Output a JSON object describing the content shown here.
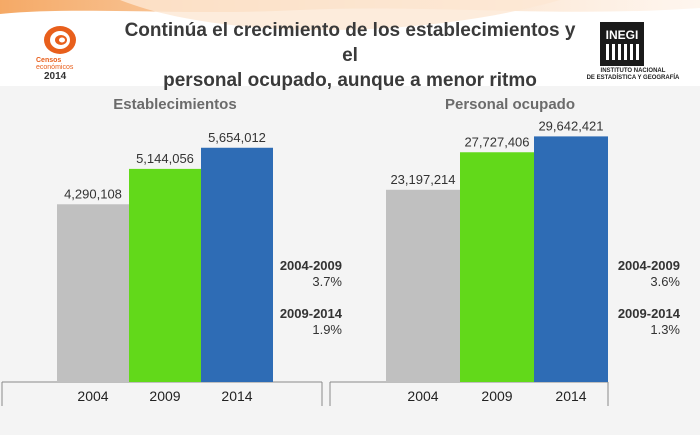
{
  "header": {
    "title_line1": "Continúa el crecimiento de los establecimientos y el",
    "title_line2": "personal ocupado, aunque a menor ritmo"
  },
  "logo_censos": {
    "line1": "Censos",
    "line2": "económicos",
    "line3": "2014"
  },
  "logo_inegi": {
    "mark": "INEGI",
    "line1": "INSTITUTO NACIONAL",
    "line2": "DE ESTADÍSTICA Y GEOGRAFÍA"
  },
  "colors": {
    "bar_2004": "#c0c0c0",
    "bar_2009": "#62d91a",
    "bar_2014": "#2e6cb5",
    "accent": "#e85f1c"
  },
  "chart_data": [
    {
      "type": "bar",
      "title": "Establecimientos",
      "categories": [
        "2004",
        "2009",
        "2014"
      ],
      "values": [
        4290108,
        5144056,
        5654012
      ],
      "labels": [
        "4,290,108",
        "5,144,056",
        "5,654,012"
      ],
      "ylim": [
        0,
        7000000
      ],
      "growth": [
        {
          "period": "2004-2009",
          "rate": "3.7%"
        },
        {
          "period": "2009-2014",
          "rate": "1.9%"
        }
      ]
    },
    {
      "type": "bar",
      "title": "Personal ocupado",
      "categories": [
        "2004",
        "2009",
        "2014"
      ],
      "values": [
        23197214,
        27727406,
        29642421
      ],
      "labels": [
        "23,197,214",
        "27,727,406",
        "29,642,421"
      ],
      "ylim": [
        0,
        35000000
      ],
      "growth": [
        {
          "period": "2004-2009",
          "rate": "3.6%"
        },
        {
          "period": "2009-2014",
          "rate": "1.3%"
        }
      ]
    }
  ]
}
